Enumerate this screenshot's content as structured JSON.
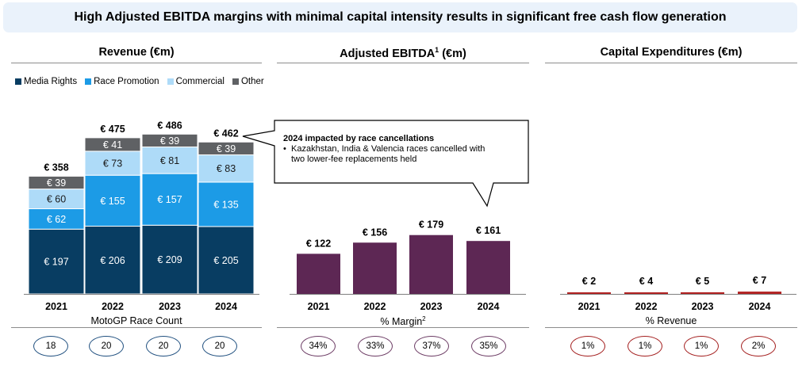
{
  "header": {
    "title": "High Adjusted EBITDA margins with minimal capital intensity results in significant free cash flow generation"
  },
  "panels": {
    "revenue": {
      "title": "Revenue (€m)",
      "footer_label": "MotoGP Race Count"
    },
    "ebitda": {
      "title_main": "Adjusted EBITDA",
      "title_sup": "1",
      "title_suffix": " (€m)",
      "footer_label": "% Margin",
      "footer_sup": "2"
    },
    "capex": {
      "title": "Capital Expenditures (€m)",
      "footer_label": "% Revenue"
    }
  },
  "legend": [
    {
      "label": "Media Rights",
      "color": "#083d62"
    },
    {
      "label": "Race Promotion",
      "color": "#1c9be6"
    },
    {
      "label": "Commercial",
      "color": "#aedbf8"
    },
    {
      "label": "Other",
      "color": "#5f6164"
    }
  ],
  "callout": {
    "title": "2024 impacted by race cancellations",
    "bullet": "•",
    "line1": "Kazakhstan, India & Valencia races cancelled with",
    "line2": "two lower-fee replacements held"
  },
  "chart_data": [
    {
      "type": "bar",
      "stacked": true,
      "title": "Revenue (€m)",
      "categories": [
        "2021",
        "2022",
        "2023",
        "2024"
      ],
      "series": [
        {
          "name": "Media Rights",
          "values": [
            197,
            206,
            209,
            205
          ],
          "labels": [
            "€ 197",
            "€ 206",
            "€ 209",
            "€ 205"
          ],
          "color": "#083d62",
          "label_color": "#ffffff"
        },
        {
          "name": "Race Promotion",
          "values": [
            62,
            155,
            157,
            135
          ],
          "labels": [
            "€ 62",
            "€ 155",
            "€ 157",
            "€ 135"
          ],
          "color": "#1c9be6",
          "label_color": "#ffffff"
        },
        {
          "name": "Commercial",
          "values": [
            60,
            73,
            81,
            83
          ],
          "labels": [
            "€ 60",
            "€ 73",
            "€ 81",
            "€ 83"
          ],
          "color": "#aedbf8",
          "label_color": "#1a1a1a"
        },
        {
          "name": "Other",
          "values": [
            39,
            41,
            39,
            39
          ],
          "labels": [
            "€ 39",
            "€ 41",
            "€ 39",
            "€ 39"
          ],
          "color": "#5f6164",
          "label_color": "#ffffff"
        }
      ],
      "totals": [
        358,
        475,
        486,
        462
      ],
      "total_labels": [
        "€ 358",
        "€ 475",
        "€ 486",
        "€ 462"
      ],
      "footer_values": [
        "18",
        "20",
        "20",
        "20"
      ],
      "footer_color": "#1f4f7f"
    },
    {
      "type": "bar",
      "title": "Adjusted EBITDA (€m)",
      "categories": [
        "2021",
        "2022",
        "2023",
        "2024"
      ],
      "values": [
        122,
        156,
        179,
        161
      ],
      "labels": [
        "€ 122",
        "€ 156",
        "€ 179",
        "€ 161"
      ],
      "color": "#5d2754",
      "footer_values": [
        "34%",
        "33%",
        "37%",
        "35%"
      ],
      "footer_color": "#6b3a63"
    },
    {
      "type": "bar",
      "title": "Capital Expenditures (€m)",
      "categories": [
        "2021",
        "2022",
        "2023",
        "2024"
      ],
      "values": [
        2,
        4,
        5,
        7
      ],
      "labels": [
        "€ 2",
        "€ 4",
        "€ 5",
        "€ 7"
      ],
      "color": "#b22222",
      "footer_values": [
        "1%",
        "1%",
        "1%",
        "2%"
      ],
      "footer_color": "#a31d1d"
    }
  ]
}
